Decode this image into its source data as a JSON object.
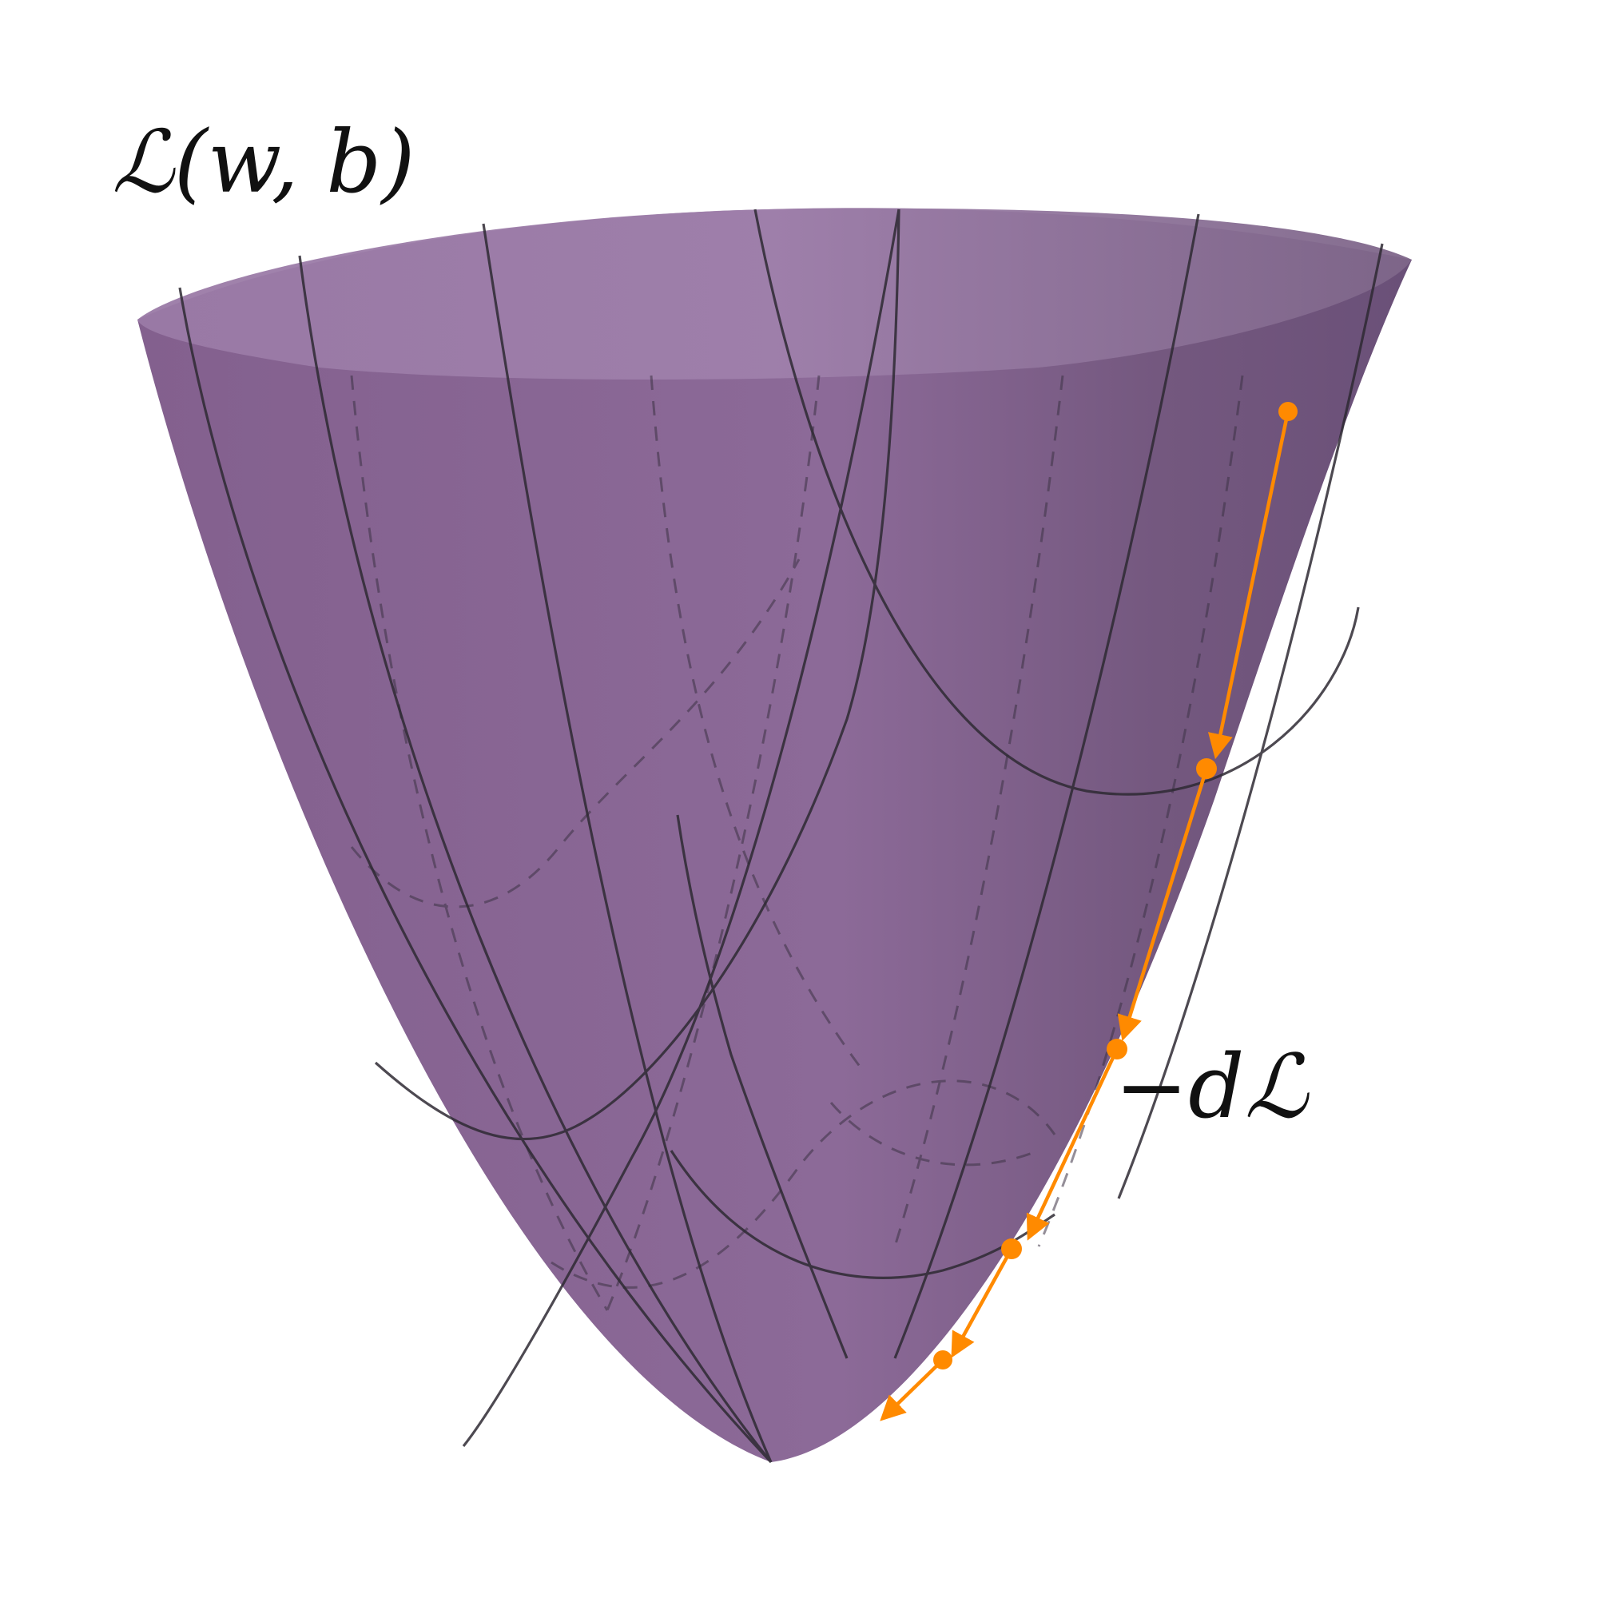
{
  "labels": {
    "surface": "ℒ(w, b)",
    "step": "−dℒ"
  },
  "colors": {
    "surface_fill": "#84608f",
    "surface_rim": "#a080ab",
    "surface_shadow": "#5e476b",
    "mesh_line": "#2e2a33",
    "descent_path": "#ff8a00",
    "text": "#111111"
  },
  "descent_path": {
    "steps": 5,
    "points": 5
  }
}
